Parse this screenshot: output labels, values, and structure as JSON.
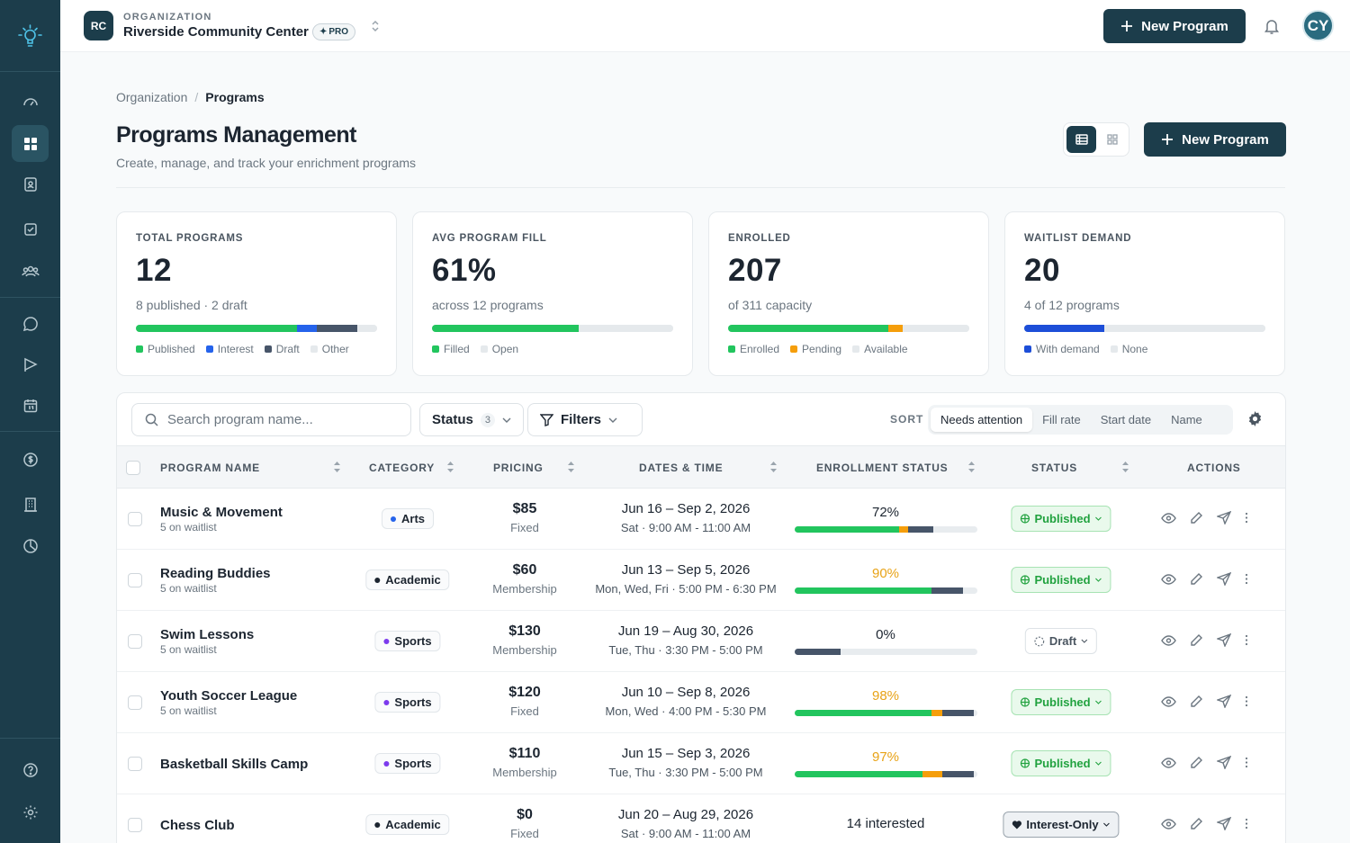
{
  "org": {
    "initials": "RC",
    "label": "ORGANIZATION",
    "name": "Riverside Community Center",
    "plan": "PRO"
  },
  "topbar": {
    "new_program": "New Program",
    "user_initials": "CY"
  },
  "breadcrumb": {
    "parent": "Organization",
    "sep": "/",
    "current": "Programs"
  },
  "page": {
    "title": "Programs Management",
    "subtitle": "Create, manage, and track your enrichment programs",
    "new_program": "New Program"
  },
  "stats": [
    {
      "label": "TOTAL PROGRAMS",
      "value": "12",
      "sub": "8 published · 2 draft",
      "segments": [
        {
          "name": "Published",
          "fraction": 0.667,
          "color": "#22c55e"
        },
        {
          "name": "Interest",
          "fraction": 0.083,
          "color": "#2563eb"
        },
        {
          "name": "Draft",
          "fraction": 0.167,
          "color": "#475569"
        },
        {
          "name": "Other",
          "fraction": 0.083,
          "color": "#e5e9ec"
        }
      ]
    },
    {
      "label": "AVG PROGRAM FILL",
      "value": "61%",
      "sub": "across 12 programs",
      "segments": [
        {
          "name": "Filled",
          "fraction": 0.61,
          "color": "#22c55e"
        },
        {
          "name": "Open",
          "fraction": 0.39,
          "color": "#e5e9ec"
        }
      ]
    },
    {
      "label": "ENROLLED",
      "value": "207",
      "sub": "of 311 capacity",
      "segments": [
        {
          "name": "Enrolled",
          "fraction": 0.666,
          "color": "#22c55e"
        },
        {
          "name": "Pending",
          "fraction": 0.058,
          "color": "#f59e0b"
        },
        {
          "name": "Available",
          "fraction": 0.276,
          "color": "#e5e9ec"
        }
      ]
    },
    {
      "label": "WAITLIST DEMAND",
      "value": "20",
      "sub": "4 of 12 programs",
      "segments": [
        {
          "name": "With demand",
          "fraction": 0.333,
          "color": "#1d4ed8"
        },
        {
          "name": "None",
          "fraction": 0.667,
          "color": "#e5e9ec"
        }
      ]
    }
  ],
  "toolbar": {
    "search_placeholder": "Search program name...",
    "status_label": "Status",
    "status_count": "3",
    "filters_label": "Filters",
    "sort_label": "SORT",
    "sort_options": [
      "Needs attention",
      "Fill rate",
      "Start date",
      "Name"
    ],
    "sort_active": "Needs attention"
  },
  "columns": [
    "PROGRAM NAME",
    "CATEGORY",
    "PRICING",
    "DATES & TIME",
    "ENROLLMENT STATUS",
    "STATUS",
    "ACTIONS"
  ],
  "category_colors": {
    "Arts": "#2563eb",
    "Academic": "#1c2530",
    "Sports": "#7c3aed"
  },
  "rows": [
    {
      "name": "Music & Movement",
      "waitlist": "5 on waitlist",
      "category": "Arts",
      "price": "$85",
      "price_type": "Fixed",
      "dates": "Jun 16 – Sep 2, 2026",
      "schedule": "Sat · 9:00 AM - 11:00 AM",
      "enrollment": "72%",
      "warn": false,
      "fill": [
        {
          "f": 0.57,
          "c": "#22c55e"
        },
        {
          "f": 0.05,
          "c": "#f59e0b"
        },
        {
          "f": 0.14,
          "c": "#475569"
        }
      ],
      "status": "Published"
    },
    {
      "name": "Reading Buddies",
      "waitlist": "5 on waitlist",
      "category": "Academic",
      "price": "$60",
      "price_type": "Membership",
      "dates": "Jun 13 – Sep 5, 2026",
      "schedule": "Mon, Wed, Fri · 5:00 PM - 6:30 PM",
      "enrollment": "90%",
      "warn": true,
      "fill": [
        {
          "f": 0.75,
          "c": "#22c55e"
        },
        {
          "f": 0.17,
          "c": "#475569"
        }
      ],
      "status": "Published"
    },
    {
      "name": "Swim Lessons",
      "waitlist": "5 on waitlist",
      "category": "Sports",
      "price": "$130",
      "price_type": "Membership",
      "dates": "Jun 19 – Aug 30, 2026",
      "schedule": "Tue, Thu · 3:30 PM - 5:00 PM",
      "enrollment": "0%",
      "warn": false,
      "fill": [
        {
          "f": 0.25,
          "c": "#475569"
        }
      ],
      "status": "Draft"
    },
    {
      "name": "Youth Soccer League",
      "waitlist": "5 on waitlist",
      "category": "Sports",
      "price": "$120",
      "price_type": "Fixed",
      "dates": "Jun 10 – Sep 8, 2026",
      "schedule": "Mon, Wed · 4:00 PM - 5:30 PM",
      "enrollment": "98%",
      "warn": true,
      "fill": [
        {
          "f": 0.75,
          "c": "#22c55e"
        },
        {
          "f": 0.06,
          "c": "#f59e0b"
        },
        {
          "f": 0.17,
          "c": "#475569"
        }
      ],
      "status": "Published"
    },
    {
      "name": "Basketball Skills Camp",
      "waitlist": "",
      "category": "Sports",
      "price": "$110",
      "price_type": "Membership",
      "dates": "Jun 15 – Sep 3, 2026",
      "schedule": "Tue, Thu · 3:30 PM - 5:00 PM",
      "enrollment": "97%",
      "warn": true,
      "fill": [
        {
          "f": 0.7,
          "c": "#22c55e"
        },
        {
          "f": 0.11,
          "c": "#f59e0b"
        },
        {
          "f": 0.17,
          "c": "#475569"
        }
      ],
      "status": "Published"
    },
    {
      "name": "Chess Club",
      "waitlist": "",
      "category": "Academic",
      "price": "$0",
      "price_type": "Fixed",
      "dates": "Jun 20 – Aug 29, 2026",
      "schedule": "Sat · 9:00 AM - 11:00 AM",
      "enrollment": "14 interested",
      "interested": true,
      "warn": false,
      "fill": [],
      "status": "Interest-Only"
    }
  ]
}
